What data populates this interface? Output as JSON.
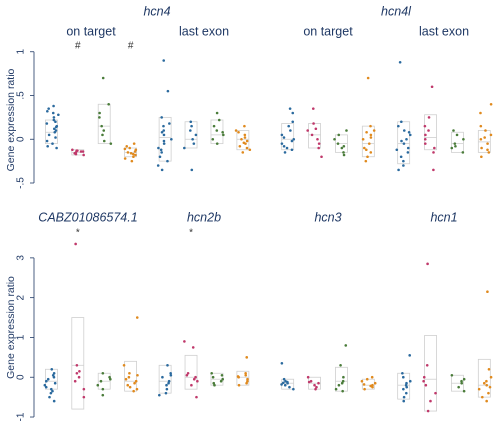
{
  "chart_data": {
    "type": "scatter",
    "ylabel": "Gene expression ratio",
    "colors": [
      "#2b6a9e",
      "#c0396b",
      "#4a7c3a",
      "#e08a1e"
    ],
    "rows": [
      {
        "yticks": [
          -0.5,
          0,
          0.5,
          1
        ],
        "ytick_labels": [
          "-.5",
          "0",
          ".5",
          "1"
        ],
        "ylim": [
          -0.58,
          1.02
        ],
        "panels": [
          {
            "gene": "hcn4",
            "sublabel": "on target",
            "groups": [
              {
                "color_index": 0,
                "box": [
                  -0.05,
                  0.08,
                  0.22
                ],
                "points": [
                  0.38,
                  0.35,
                  0.3,
                  0.28,
                  0.25,
                  0.22,
                  0.18,
                  0.15,
                  0.12,
                  0.1,
                  0.08,
                  0.05,
                  0.02,
                  -0.02,
                  -0.05,
                  -0.08,
                  0.32,
                  0.2,
                  -0.1,
                  0.14
                ],
                "marker": ""
              },
              {
                "color_index": 1,
                "box": [
                  -0.18,
                  -0.15,
                  -0.12
                ],
                "points": [
                  -0.12,
                  -0.13,
                  -0.14,
                  -0.15,
                  -0.16,
                  -0.17,
                  -0.18,
                  -0.14,
                  -0.13
                ],
                "marker": "#"
              },
              {
                "color_index": 2,
                "box": [
                  -0.05,
                  0.15,
                  0.4
                ],
                "points": [
                  0.7,
                  0.4,
                  0.3,
                  0.25,
                  0.15,
                  0.05,
                  -0.02,
                  -0.05,
                  0.1
                ],
                "marker": ""
              },
              {
                "color_index": 3,
                "box": [
                  -0.2,
                  -0.15,
                  -0.1
                ],
                "points": [
                  -0.05,
                  -0.08,
                  -0.1,
                  -0.12,
                  -0.14,
                  -0.15,
                  -0.16,
                  -0.18,
                  -0.2,
                  -0.22,
                  -0.25,
                  -0.11,
                  -0.17
                ],
                "marker": "#"
              }
            ]
          },
          {
            "gene": "",
            "sublabel": "last exon",
            "groups": [
              {
                "color_index": 0,
                "box": [
                  -0.25,
                  0.02,
                  0.25
                ],
                "points": [
                  0.9,
                  0.55,
                  0.25,
                  0.15,
                  0.1,
                  0.05,
                  0.0,
                  -0.05,
                  -0.1,
                  -0.15,
                  -0.2,
                  -0.25,
                  -0.3,
                  -0.35,
                  0.08,
                  -0.02,
                  -0.12,
                  0.18
                ],
                "marker": ""
              },
              {
                "color_index": 0,
                "box": [
                  -0.1,
                  0.0,
                  0.2
                ],
                "points": [
                  0.2,
                  0.15,
                  0.05,
                  0.0,
                  -0.05,
                  -0.1,
                  -0.35,
                  0.1
                ],
                "marker": ""
              },
              {
                "color_index": 2,
                "box": [
                  -0.05,
                  0.05,
                  0.22
                ],
                "points": [
                  0.3,
                  0.22,
                  0.15,
                  0.1,
                  0.05,
                  0.0,
                  -0.05,
                  0.08
                ],
                "marker": ""
              },
              {
                "color_index": 3,
                "box": [
                  -0.12,
                  0.0,
                  0.1
                ],
                "points": [
                  0.15,
                  0.1,
                  0.05,
                  0.02,
                  0.0,
                  -0.02,
                  -0.05,
                  -0.08,
                  -0.1,
                  -0.12,
                  -0.15,
                  0.08,
                  -0.04
                ],
                "marker": ""
              }
            ]
          },
          {
            "gene": "hcn4l",
            "sublabel": "on target",
            "groups": [
              {
                "color_index": 0,
                "box": [
                  -0.12,
                  0.0,
                  0.18
                ],
                "points": [
                  0.35,
                  0.3,
                  0.15,
                  0.1,
                  0.05,
                  0.0,
                  -0.05,
                  -0.08,
                  -0.1,
                  -0.12,
                  -0.15,
                  0.2,
                  0.02,
                  -0.02
                ],
                "marker": ""
              },
              {
                "color_index": 1,
                "box": [
                  -0.1,
                  0.05,
                  0.18
                ],
                "points": [
                  0.35,
                  0.18,
                  0.1,
                  0.05,
                  0.0,
                  -0.05,
                  -0.1,
                  -0.2,
                  0.12
                ],
                "marker": ""
              },
              {
                "color_index": 2,
                "box": [
                  -0.15,
                  -0.05,
                  0.05
                ],
                "points": [
                  0.1,
                  0.05,
                  0.0,
                  -0.05,
                  -0.1,
                  -0.15,
                  -0.18,
                  -0.08
                ],
                "marker": ""
              },
              {
                "color_index": 3,
                "box": [
                  -0.2,
                  -0.05,
                  0.15
                ],
                "points": [
                  0.7,
                  0.15,
                  0.1,
                  0.05,
                  0.0,
                  -0.05,
                  -0.1,
                  -0.15,
                  -0.2,
                  -0.25,
                  0.02,
                  -0.12,
                  0.08
                ],
                "marker": ""
              }
            ]
          },
          {
            "gene": "",
            "sublabel": "last exon",
            "groups": [
              {
                "color_index": 0,
                "box": [
                  -0.28,
                  -0.05,
                  0.2
                ],
                "points": [
                  0.88,
                  0.2,
                  0.15,
                  0.1,
                  0.05,
                  0.0,
                  -0.05,
                  -0.1,
                  -0.15,
                  -0.2,
                  -0.25,
                  -0.3,
                  -0.35,
                  0.08,
                  -0.02,
                  -0.12
                ],
                "marker": ""
              },
              {
                "color_index": 1,
                "box": [
                  -0.12,
                  0.02,
                  0.28
                ],
                "points": [
                  0.6,
                  0.25,
                  0.15,
                  0.05,
                  0.0,
                  -0.05,
                  -0.1,
                  -0.15,
                  -0.35,
                  0.1
                ],
                "marker": ""
              },
              {
                "color_index": 2,
                "box": [
                  -0.15,
                  -0.05,
                  0.08
                ],
                "points": [
                  0.1,
                  0.05,
                  0.0,
                  -0.05,
                  -0.1,
                  -0.15,
                  -0.08
                ],
                "marker": ""
              },
              {
                "color_index": 3,
                "box": [
                  -0.15,
                  -0.03,
                  0.1
                ],
                "points": [
                  0.4,
                  0.3,
                  0.15,
                  0.1,
                  0.05,
                  0.0,
                  -0.05,
                  -0.1,
                  -0.15,
                  -0.2,
                  0.02,
                  -0.12
                ],
                "marker": ""
              }
            ]
          }
        ]
      },
      {
        "yticks": [
          -1,
          0,
          1,
          2,
          3
        ],
        "ytick_labels": [
          "-1",
          "0",
          "1",
          "2",
          "3"
        ],
        "ylim": [
          -1.1,
          3.6
        ],
        "panels": [
          {
            "gene": "CABZ01086574.1",
            "sublabel": "",
            "groups": [
              {
                "color_index": 0,
                "box": [
                  -0.3,
                  -0.1,
                  0.2
                ],
                "points": [
                  0.2,
                  0.1,
                  0.0,
                  -0.05,
                  -0.1,
                  -0.15,
                  -0.2,
                  -0.25,
                  -0.3,
                  -0.4,
                  -0.5,
                  -0.6,
                  0.05,
                  -0.35
                ],
                "marker": ""
              },
              {
                "color_index": 1,
                "box": [
                  -0.8,
                  0.3,
                  1.5
                ],
                "points": [
                  3.35,
                  0.3,
                  0.1,
                  0.0,
                  -0.1,
                  -0.3,
                  -0.5,
                  0.15
                ],
                "marker": "*"
              },
              {
                "color_index": 2,
                "box": [
                  -0.3,
                  -0.1,
                  0.1
                ],
                "points": [
                  0.1,
                  0.0,
                  -0.1,
                  -0.2,
                  -0.3,
                  -0.45,
                  -0.05
                ],
                "marker": ""
              },
              {
                "color_index": 3,
                "box": [
                  -0.35,
                  -0.1,
                  0.4
                ],
                "points": [
                  1.5,
                  0.3,
                  0.1,
                  0.0,
                  -0.05,
                  -0.1,
                  -0.2,
                  -0.3,
                  -0.35,
                  0.05,
                  -0.15,
                  -0.25
                ],
                "marker": ""
              }
            ]
          },
          {
            "gene": "hcn2b",
            "sublabel": "",
            "groups": [
              {
                "color_index": 0,
                "box": [
                  -0.4,
                  -0.1,
                  0.3
                ],
                "points": [
                  0.3,
                  0.1,
                  0.0,
                  -0.1,
                  -0.2,
                  -0.3,
                  -0.4,
                  -0.45,
                  0.05,
                  -0.15
                ],
                "marker": ""
              },
              {
                "color_index": 1,
                "box": [
                  -0.3,
                  0.0,
                  0.55
                ],
                "points": [
                  0.9,
                  0.75,
                  0.1,
                  0.0,
                  -0.05,
                  -0.1,
                  -0.2,
                  -0.5,
                  0.05
                ],
                "marker": "*"
              },
              {
                "color_index": 2,
                "box": [
                  -0.2,
                  -0.05,
                  0.1
                ],
                "points": [
                  0.1,
                  0.0,
                  -0.05,
                  -0.1,
                  -0.15,
                  -0.2,
                  0.05
                ],
                "marker": ""
              },
              {
                "color_index": 3,
                "box": [
                  -0.2,
                  0.0,
                  0.15
                ],
                "points": [
                  0.5,
                  0.1,
                  0.05,
                  0.0,
                  -0.05,
                  -0.1,
                  -0.15,
                  -0.2,
                  0.02
                ],
                "marker": ""
              }
            ]
          },
          {
            "gene": "hcn3",
            "sublabel": "",
            "groups": [
              {
                "color_index": 0,
                "box": [
                  -0.3,
                  -0.15,
                  -0.05
                ],
                "points": [
                  0.35,
                  -0.05,
                  -0.1,
                  -0.12,
                  -0.15,
                  -0.18,
                  -0.2,
                  -0.25,
                  -0.3,
                  -0.14
                ],
                "marker": ""
              },
              {
                "color_index": 1,
                "box": [
                  -0.3,
                  -0.15,
                  0.0
                ],
                "points": [
                  0.0,
                  -0.1,
                  -0.15,
                  -0.2,
                  -0.25,
                  -0.3,
                  -0.12
                ],
                "marker": ""
              },
              {
                "color_index": 2,
                "box": [
                  -0.35,
                  -0.1,
                  0.25
                ],
                "points": [
                  0.8,
                  0.3,
                  0.0,
                  -0.1,
                  -0.2,
                  -0.3,
                  -0.35,
                  -0.15
                ],
                "marker": ""
              },
              {
                "color_index": 3,
                "box": [
                  -0.3,
                  -0.2,
                  -0.05
                ],
                "points": [
                  0.0,
                  -0.05,
                  -0.1,
                  -0.15,
                  -0.2,
                  -0.25,
                  -0.3,
                  -0.18,
                  -0.22
                ],
                "marker": ""
              }
            ]
          },
          {
            "gene": "hcn1",
            "sublabel": "",
            "groups": [
              {
                "color_index": 0,
                "box": [
                  -0.55,
                  -0.2,
                  0.1
                ],
                "points": [
                  0.55,
                  0.1,
                  0.0,
                  -0.1,
                  -0.2,
                  -0.3,
                  -0.4,
                  -0.5,
                  -0.6,
                  -0.15,
                  -0.25
                ],
                "marker": ""
              },
              {
                "color_index": 1,
                "box": [
                  -0.85,
                  -0.05,
                  1.05
                ],
                "points": [
                  2.85,
                  0.3,
                  0.0,
                  -0.2,
                  -0.4,
                  -0.6,
                  -0.85,
                  -0.1
                ],
                "marker": ""
              },
              {
                "color_index": 2,
                "box": [
                  -0.35,
                  -0.15,
                  0.05
                ],
                "points": [
                  0.05,
                  -0.05,
                  -0.15,
                  -0.25,
                  -0.35,
                  -0.1
                ],
                "marker": ""
              },
              {
                "color_index": 3,
                "box": [
                  -0.5,
                  -0.2,
                  0.45
                ],
                "points": [
                  2.15,
                  0.2,
                  0.0,
                  -0.1,
                  -0.2,
                  -0.3,
                  -0.4,
                  -0.5,
                  -0.6,
                  -0.15,
                  -0.25
                ],
                "marker": ""
              }
            ]
          }
        ]
      }
    ]
  }
}
